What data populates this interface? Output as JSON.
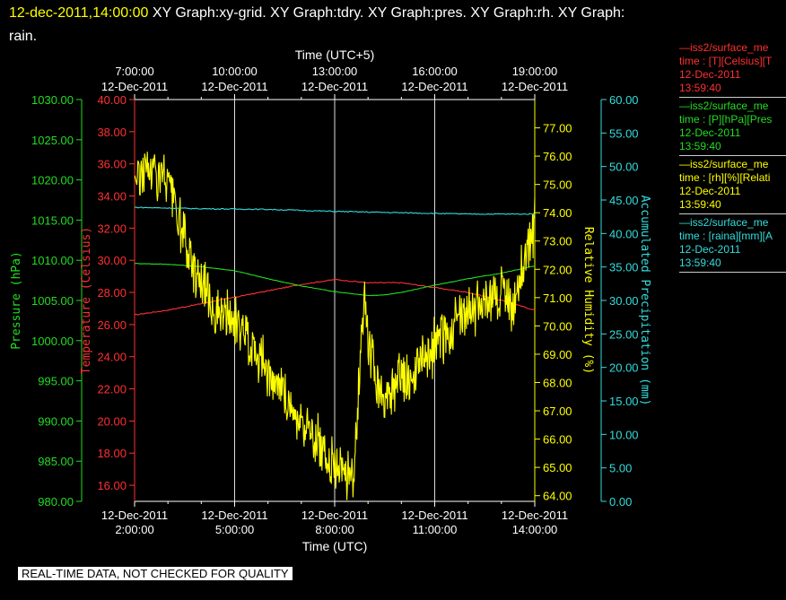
{
  "title": {
    "date": "12-dec-2011,14:00:00",
    "graphs_line1": "XY Graph:xy-grid.  XY Graph:tdry.  XY Graph:pres.  XY Graph:rh.  XY Graph:",
    "graphs_line2": "rain."
  },
  "footer_note": "REAL-TIME DATA, NOT CHECKED FOR QUALITY",
  "legend": [
    {
      "color": "#ff3030",
      "line1": "—iss2/surface_me",
      "line2": "time : [T][Celsius][T",
      "line3": "12-Dec-2011",
      "line4": "13:59:40"
    },
    {
      "color": "#22dd22",
      "line1": "—iss2/surface_me",
      "line2": "time : [P][hPa][Pres",
      "line3": "12-Dec-2011",
      "line4": "13:59:40"
    },
    {
      "color": "#ffff00",
      "line1": "—iss2/surface_me",
      "line2": "time : [rh][%][Relati",
      "line3": "12-Dec-2011",
      "line4": "13:59:40"
    },
    {
      "color": "#33dddd",
      "line1": "—iss2/surface_me",
      "line2": "time : [raina][mm][A",
      "line3": "12-Dec-2011",
      "line4": "13:59:40"
    }
  ],
  "chart_data": {
    "type": "line",
    "x_bottom": {
      "label": "Time (UTC)",
      "ticks": [
        {
          "date": "12-Dec-2011",
          "time": "2:00:00"
        },
        {
          "date": "12-Dec-2011",
          "time": "5:00:00"
        },
        {
          "date": "12-Dec-2011",
          "time": "8:00:00"
        },
        {
          "date": "12-Dec-2011",
          "time": "11:00:00"
        },
        {
          "date": "12-Dec-2011",
          "time": "14:00:00"
        }
      ],
      "range": [
        "2011-12-12T02:00:00",
        "2011-12-12T14:00:00"
      ]
    },
    "x_top": {
      "label": "Time (UTC+5)",
      "ticks": [
        {
          "time": "7:00:00",
          "date": "12-Dec-2011"
        },
        {
          "time": "10:00:00",
          "date": "12-Dec-2011"
        },
        {
          "time": "13:00:00",
          "date": "12-Dec-2011"
        },
        {
          "time": "16:00:00",
          "date": "12-Dec-2011"
        },
        {
          "time": "19:00:00",
          "date": "12-Dec-2011"
        }
      ]
    },
    "axes": {
      "pressure": {
        "label": "Pressure (hPa)",
        "color": "#22dd22",
        "range": [
          980,
          1030
        ],
        "ticks": [
          "980.00",
          "985.00",
          "990.00",
          "995.00",
          "1000.00",
          "1005.00",
          "1010.00",
          "1015.00",
          "1020.00",
          "1025.00",
          "1030.00"
        ]
      },
      "temperature": {
        "label": "Temperature (Celsius)",
        "color": "#ff3030",
        "range": [
          15,
          40
        ],
        "ticks": [
          "16.00",
          "18.00",
          "20.00",
          "22.00",
          "24.00",
          "26.00",
          "28.00",
          "30.00",
          "32.00",
          "34.00",
          "36.00",
          "38.00",
          "40.00"
        ]
      },
      "humidity": {
        "label": "Relative Humidity (%)",
        "color": "#ffff00",
        "range": [
          63.8,
          78.0
        ],
        "ticks": [
          "64.00",
          "65.00",
          "66.00",
          "67.00",
          "68.00",
          "69.00",
          "70.00",
          "71.00",
          "72.00",
          "73.00",
          "74.00",
          "75.00",
          "76.00",
          "77.00"
        ]
      },
      "precip": {
        "label": "Accumulated Precipitation (mm)",
        "color": "#33dddd",
        "range": [
          0,
          60
        ],
        "ticks": [
          "0.00",
          "5.00",
          "10.00",
          "15.00",
          "20.00",
          "25.00",
          "30.00",
          "35.00",
          "40.00",
          "45.00",
          "50.00",
          "55.00",
          "60.00"
        ]
      }
    },
    "grid": true,
    "series": [
      {
        "axis": "temperature",
        "color": "#ff3030",
        "smooth": true,
        "x": [
          0,
          1,
          2,
          3,
          4,
          5,
          6,
          7,
          8,
          9,
          10,
          11,
          12
        ],
        "y": [
          26.6,
          26.9,
          27.3,
          27.7,
          28.1,
          28.5,
          28.8,
          28.6,
          28.6,
          28.3,
          28.0,
          27.5,
          26.9
        ]
      },
      {
        "axis": "pressure",
        "color": "#22dd22",
        "smooth": true,
        "x": [
          0,
          1,
          2,
          3,
          4,
          5,
          6,
          7,
          7.5,
          8,
          9,
          10,
          11,
          12
        ],
        "y": [
          1009.6,
          1009.5,
          1009.2,
          1008.7,
          1007.7,
          1006.8,
          1006.1,
          1005.6,
          1005.7,
          1006.0,
          1006.9,
          1007.7,
          1008.4,
          1009.3
        ]
      },
      {
        "axis": "humidity",
        "color": "#ffff00",
        "noisy": true,
        "x": [
          0,
          0.5,
          1,
          1.2,
          1.4,
          1.6,
          2,
          2.5,
          3,
          3.5,
          4,
          4.5,
          5,
          5.5,
          6,
          6.3,
          6.6,
          6.8,
          6.9,
          7,
          7.3,
          7.6,
          8,
          8.3,
          8.6,
          9,
          9.5,
          10,
          10.5,
          11,
          11.3,
          11.6,
          12
        ],
        "y": [
          75.3,
          75.6,
          75.1,
          74.3,
          73.4,
          72.5,
          71.6,
          70.4,
          70.1,
          69.4,
          68.4,
          67.5,
          66.6,
          65.9,
          65.1,
          64.8,
          64.9,
          69.7,
          70.6,
          69.4,
          67.9,
          67.3,
          68.2,
          67.9,
          68.7,
          69.3,
          69.9,
          70.4,
          71.0,
          71.2,
          70.7,
          71.9,
          73.6
        ]
      },
      {
        "axis": "precip",
        "color": "#33dddd",
        "smooth": true,
        "x": [
          0,
          2,
          4,
          6,
          8,
          10,
          12
        ],
        "y": [
          43.9,
          43.7,
          43.6,
          43.3,
          43.1,
          42.9,
          42.9
        ]
      }
    ]
  }
}
